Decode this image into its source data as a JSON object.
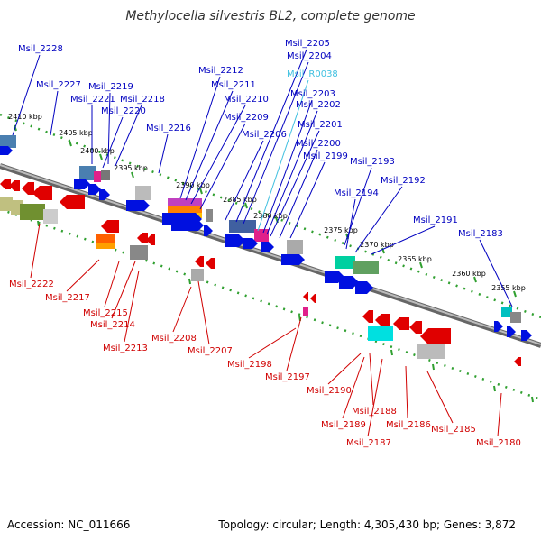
{
  "title": "Methylocella silvestris BL2, complete genome",
  "footer": {
    "accession": "Accession: NC_011666",
    "summary": "Topology: circular; Length: 4,305,430 bp; Genes: 3,872"
  },
  "colors": {
    "forward_label": "#0000c0",
    "reverse_label": "#d00000",
    "rna_label": "#40c0e0",
    "backbone": "#888888",
    "dotted_track": "#30a030"
  },
  "ticks": [
    "2410 kbp",
    "2405 kbp",
    "2400 kbp",
    "2395 kbp",
    "2390 kbp",
    "2385 kbp",
    "2380 kbp",
    "2375 kbp",
    "2370 kbp",
    "2365 kbp",
    "2360 kbp",
    "2355 kbp"
  ],
  "forward_genes": [
    "Msil_2228",
    "Msil_2227",
    "Msil_2221",
    "Msil_2219",
    "Msil_2218",
    "Msil_2220",
    "Msil_2216",
    "Msil_2212",
    "Msil_2211",
    "Msil_2210",
    "Msil_2209",
    "Msil_2206",
    "Msil_2205",
    "Msil_2204",
    "Msil_R0038",
    "Msil_2203",
    "Msil_2202",
    "Msil_2201",
    "Msil_2200",
    "Msil_2199",
    "Msil_2193",
    "Msil_2194",
    "Msil_2192",
    "Msil_2191",
    "Msil_2183"
  ],
  "reverse_genes": [
    "Msil_2222",
    "Msil_2217",
    "Msil_2215",
    "Msil_2214",
    "Msil_2213",
    "Msil_2208",
    "Msil_2207",
    "Msil_2198",
    "Msil_2197",
    "Msil_2190",
    "Msil_2188",
    "Msil_2189",
    "Msil_2187",
    "Msil_2186",
    "Msil_2185",
    "Msil_2180"
  ]
}
